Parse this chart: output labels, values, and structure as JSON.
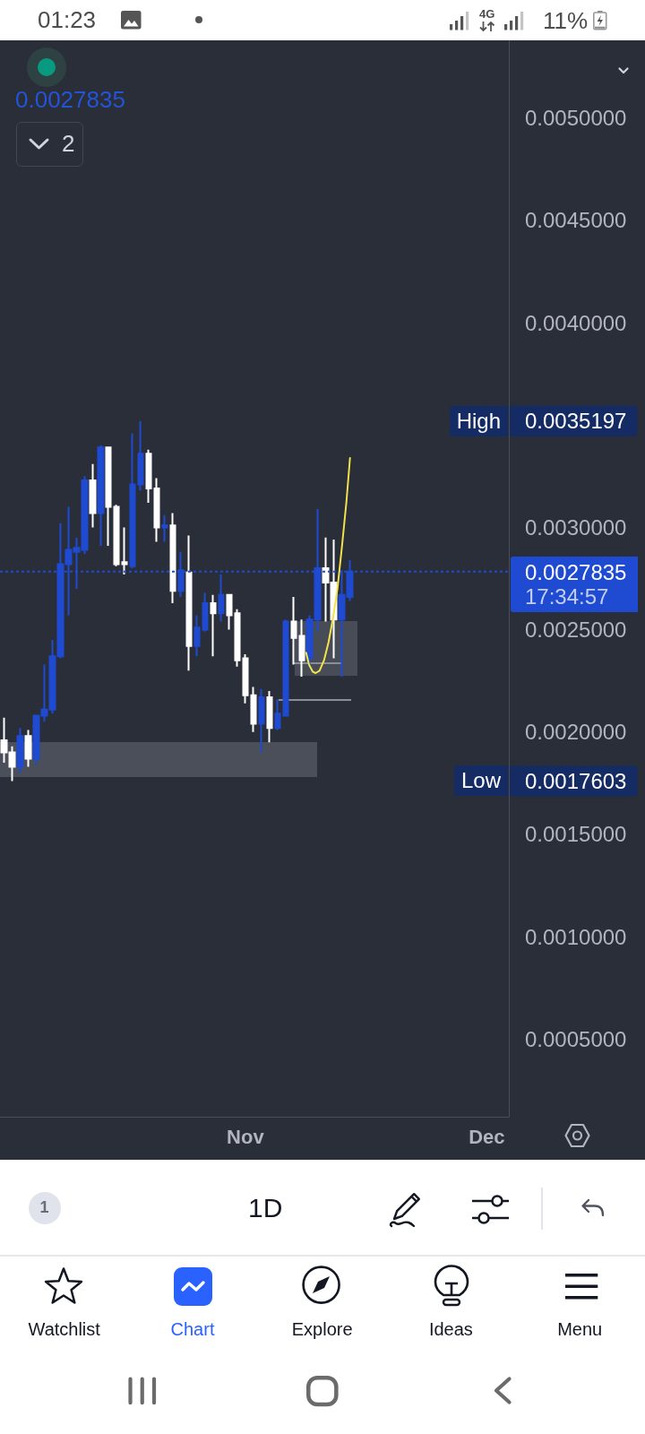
{
  "chart_data": {
    "type": "candlestick",
    "x": [
      "--10-02",
      "--10-03",
      "--10-04",
      "--10-05",
      "--10-06",
      "--10-07",
      "--10-08",
      "--10-09",
      "--10-10",
      "--10-11",
      "--10-12",
      "--10-13",
      "--10-14",
      "--10-15",
      "--10-16",
      "--10-17",
      "--10-18",
      "--10-19",
      "--10-20",
      "--10-21",
      "--10-22",
      "--10-23",
      "--10-24",
      "--10-25",
      "--10-26",
      "--10-27",
      "--10-28",
      "--10-29",
      "--10-30",
      "--10-31",
      "--11-01",
      "--11-02",
      "--11-03",
      "--11-04",
      "--11-05",
      "--11-06",
      "--11-07",
      "--11-08",
      "--11-09",
      "--11-10",
      "--11-11",
      "--11-12",
      "--11-13",
      "--11-14"
    ],
    "ohlc": [
      [
        0.00196,
        0.00207,
        0.00185,
        0.0019
      ],
      [
        0.0019,
        0.00193,
        0.0017603,
        0.00183
      ],
      [
        0.00183,
        0.00202,
        0.0018,
        0.00198
      ],
      [
        0.00198,
        0.00201,
        0.00183,
        0.00187
      ],
      [
        0.00187,
        0.00208,
        0.00184,
        0.00208
      ],
      [
        0.00208,
        0.00233,
        0.00205,
        0.00211
      ],
      [
        0.00211,
        0.00245,
        0.00209,
        0.00237
      ],
      [
        0.00237,
        0.00302,
        0.00236,
        0.00282
      ],
      [
        0.00282,
        0.0031,
        0.00257,
        0.00289
      ],
      [
        0.00288,
        0.00295,
        0.0027,
        0.0029
      ],
      [
        0.00289,
        0.00325,
        0.00287,
        0.00323
      ],
      [
        0.00323,
        0.00331,
        0.003,
        0.00307
      ],
      [
        0.00307,
        0.0034,
        0.00291,
        0.00339
      ],
      [
        0.00339,
        0.00339,
        0.00291,
        0.0031
      ],
      [
        0.0031,
        0.00311,
        0.00281,
        0.00282
      ],
      [
        0.00283,
        0.003,
        0.00277,
        0.00282
      ],
      [
        0.00281,
        0.00346,
        0.0028,
        0.00321
      ],
      [
        0.00321,
        0.0035197,
        0.00318,
        0.00336
      ],
      [
        0.00336,
        0.00338,
        0.00312,
        0.00319
      ],
      [
        0.00319,
        0.00324,
        0.00293,
        0.003
      ],
      [
        0.003,
        0.00306,
        0.00293,
        0.00301
      ],
      [
        0.00301,
        0.00307,
        0.00263,
        0.00269
      ],
      [
        0.00269,
        0.00288,
        0.00266,
        0.00279
      ],
      [
        0.00278,
        0.00296,
        0.0023,
        0.00242
      ],
      [
        0.00242,
        0.00257,
        0.00237,
        0.00251
      ],
      [
        0.0025,
        0.00268,
        0.00249,
        0.00263
      ],
      [
        0.00263,
        0.00267,
        0.00237,
        0.00258
      ],
      [
        0.00258,
        0.00277,
        0.00254,
        0.00267
      ],
      [
        0.00267,
        0.00267,
        0.0025,
        0.00257
      ],
      [
        0.00258,
        0.0026,
        0.00232,
        0.00235
      ],
      [
        0.00236,
        0.00238,
        0.00214,
        0.00218
      ],
      [
        0.00218,
        0.00222,
        0.002,
        0.00204
      ],
      [
        0.00204,
        0.00221,
        0.0019,
        0.00217
      ],
      [
        0.00217,
        0.0022,
        0.00195,
        0.00202
      ],
      [
        0.00202,
        0.00216,
        0.00201,
        0.00209
      ],
      [
        0.00208,
        0.00255,
        0.00208,
        0.00254
      ],
      [
        0.00254,
        0.00266,
        0.00233,
        0.00246
      ],
      [
        0.00247,
        0.00255,
        0.00227,
        0.00235
      ],
      [
        0.00236,
        0.00257,
        0.00231,
        0.00255
      ],
      [
        0.00255,
        0.00309,
        0.00249,
        0.0028
      ],
      [
        0.0028,
        0.00295,
        0.00254,
        0.00273
      ],
      [
        0.00273,
        0.00294,
        0.00236,
        0.00255
      ],
      [
        0.00255,
        0.00279,
        0.00227,
        0.00267
      ],
      [
        0.00266,
        0.00284,
        0.00264,
        0.0027835
      ]
    ],
    "colors": [
      "#ffffff",
      "#ffffff",
      "#1e4bd1",
      "#ffffff",
      "#1e4bd1",
      "#1e4bd1",
      "#1e4bd1",
      "#1e4bd1",
      "#1e4bd1",
      "#1e4bd1",
      "#1e4bd1",
      "#ffffff",
      "#1e4bd1",
      "#ffffff",
      "#ffffff",
      "#ffffff",
      "#1e4bd1",
      "#1e4bd1",
      "#ffffff",
      "#ffffff",
      "#1e4bd1",
      "#ffffff",
      "#1e4bd1",
      "#ffffff",
      "#1e4bd1",
      "#1e4bd1",
      "#ffffff",
      "#1e4bd1",
      "#ffffff",
      "#ffffff",
      "#ffffff",
      "#ffffff",
      "#1e4bd1",
      "#ffffff",
      "#1e4bd1",
      "#1e4bd1",
      "#ffffff",
      "#ffffff",
      "#1e4bd1",
      "#1e4bd1",
      "#ffffff",
      "#ffffff",
      "#1e4bd1",
      "#1e4bd1"
    ],
    "xlim": [
      "--10-01T12:00",
      "--12-03T18:00"
    ],
    "xticks": [
      {
        "value": "--11-01",
        "label": "Nov"
      },
      {
        "value": "--12-01",
        "label": "Dec"
      }
    ],
    "ylim": [
      0.00012,
      0.00538
    ],
    "yticks": [
      {
        "value": 0.0005,
        "label": "0.0005000"
      },
      {
        "value": 0.001,
        "label": "0.0010000"
      },
      {
        "value": 0.0015,
        "label": "0.0015000"
      },
      0.0017603,
      {
        "value": 0.002,
        "label": "0.0020000"
      },
      {
        "value": 0.0025,
        "label": "0.0025000"
      },
      {
        "value": 0.003,
        "label": "0.0030000"
      },
      0.0035197,
      {
        "value": 0.004,
        "label": "0.0040000"
      },
      {
        "value": 0.0045,
        "label": "0.0045000"
      },
      {
        "value": 0.005,
        "label": "0.0050000"
      }
    ],
    "grid": false,
    "ref_lines": [
      {
        "axis": "y",
        "value": 0.0027835,
        "label": "0.0027835",
        "color": "#1e4bd1",
        "line_style": "dotted"
      }
    ],
    "annotations": [
      "High",
      "Low",
      "17:34:57",
      "0.0027835",
      "2",
      "01:23",
      "4G",
      "11%",
      "1",
      "1D",
      "Watchlist",
      "Chart",
      "Explore",
      "Ideas",
      "Menu"
    ]
  }
}
